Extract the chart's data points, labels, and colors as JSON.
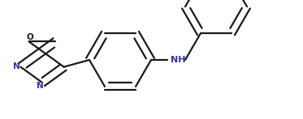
{
  "bg_color": "#ffffff",
  "line_color": "#1a1a1a",
  "n_color": "#3333aa",
  "line_width": 1.6,
  "dbo": 0.008,
  "figsize": [
    3.73,
    1.47
  ],
  "dpi": 100,
  "xlim": [
    0,
    373
  ],
  "ylim": [
    0,
    147
  ]
}
